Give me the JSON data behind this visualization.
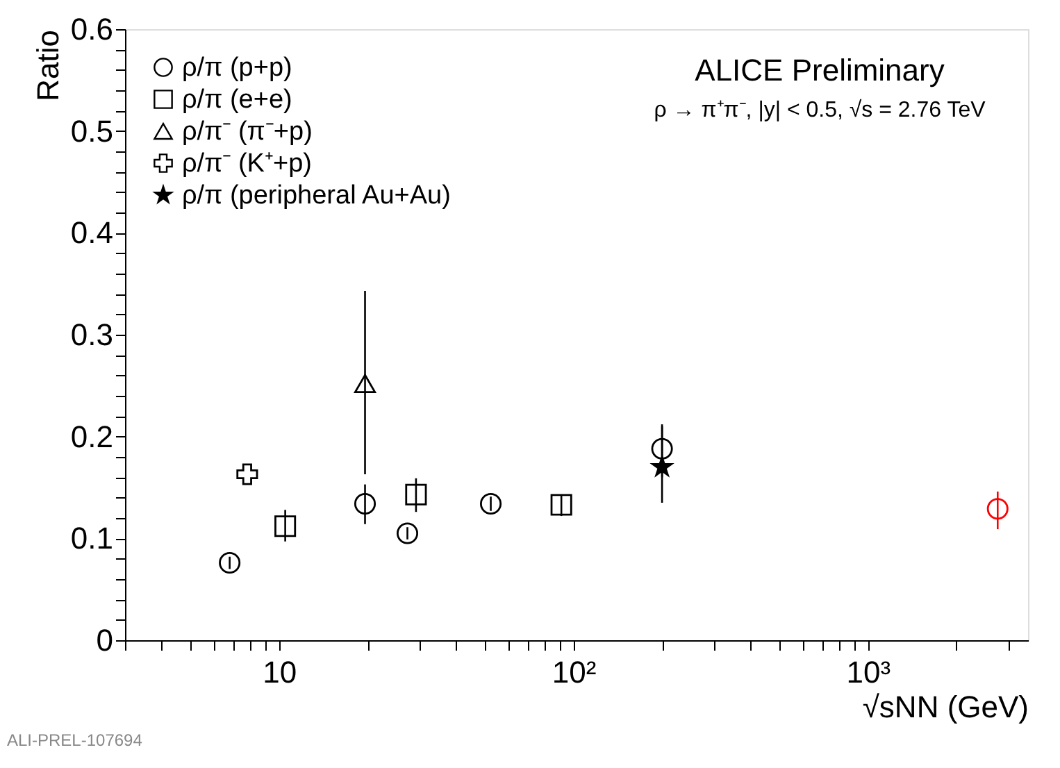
{
  "chart_data": {
    "type": "scatter",
    "xlabel": "√sNN (GeV)",
    "ylabel": "Ratio",
    "log": "x",
    "grid": false,
    "legend": "top left",
    "annotations": [
      "ALICE Preliminary",
      "ρ → π⁺π⁻, |y| < 0.5, √s = 2.76 TeV",
      "ALI-PREL-107694"
    ],
    "xlim": [
      3,
      3500
    ],
    "ylim": [
      0,
      0.6
    ],
    "xticks": [
      {
        "value": 3,
        "label": null
      },
      {
        "value": 4,
        "label": null
      },
      {
        "value": 5,
        "label": null
      },
      {
        "value": 6,
        "label": null
      },
      {
        "value": 7,
        "label": null
      },
      {
        "value": 8,
        "label": null
      },
      {
        "value": 9,
        "label": null
      },
      10,
      {
        "value": 20,
        "label": null
      },
      {
        "value": 30,
        "label": null
      },
      {
        "value": 40,
        "label": null
      },
      {
        "value": 50,
        "label": null
      },
      {
        "value": 60,
        "label": null
      },
      {
        "value": 70,
        "label": null
      },
      {
        "value": 80,
        "label": null
      },
      {
        "value": 90,
        "label": null
      },
      {
        "value": 100,
        "label": "10²"
      },
      {
        "value": 200,
        "label": null
      },
      {
        "value": 300,
        "label": null
      },
      {
        "value": 400,
        "label": null
      },
      {
        "value": 500,
        "label": null
      },
      {
        "value": 600,
        "label": null
      },
      {
        "value": 700,
        "label": null
      },
      {
        "value": 800,
        "label": null
      },
      {
        "value": 900,
        "label": null
      },
      {
        "value": 1000,
        "label": "10³"
      },
      {
        "value": 2000,
        "label": null
      },
      {
        "value": 3000,
        "label": null
      }
    ],
    "yticks": [
      0,
      {
        "value": 0.02,
        "label": null
      },
      {
        "value": 0.04,
        "label": null
      },
      {
        "value": 0.06,
        "label": null
      },
      {
        "value": 0.08,
        "label": null
      },
      0.1,
      {
        "value": 0.12,
        "label": null
      },
      {
        "value": 0.14,
        "label": null
      },
      {
        "value": 0.16,
        "label": null
      },
      {
        "value": 0.18,
        "label": null
      },
      0.2,
      {
        "value": 0.22,
        "label": null
      },
      {
        "value": 0.24,
        "label": null
      },
      {
        "value": 0.26,
        "label": null
      },
      {
        "value": 0.28,
        "label": null
      },
      0.3,
      {
        "value": 0.32,
        "label": null
      },
      {
        "value": 0.34,
        "label": null
      },
      {
        "value": 0.36,
        "label": null
      },
      {
        "value": 0.38,
        "label": null
      },
      0.4,
      {
        "value": 0.42,
        "label": null
      },
      {
        "value": 0.44,
        "label": null
      },
      {
        "value": 0.46,
        "label": null
      },
      {
        "value": 0.48,
        "label": null
      },
      0.5,
      {
        "value": 0.52,
        "label": null
      },
      {
        "value": 0.54,
        "label": null
      },
      {
        "value": 0.56,
        "label": null
      },
      {
        "value": 0.58,
        "label": null
      },
      0.6
    ],
    "series": [
      {
        "name": "ρ/π (p+p)",
        "color": "#000000",
        "marker": "circle",
        "x": [
          6.8,
          19.6,
          27.3,
          52.4,
          200
        ],
        "values": [
          0.076,
          0.134,
          0.105,
          0.134,
          0.188
        ],
        "errors": [
          [
            0.07,
            0.082
          ],
          [
            0.114,
            0.153
          ],
          [
            0.099,
            0.111
          ],
          [
            0.127,
            0.141
          ],
          [
            0.16,
            0.21
          ]
        ]
      },
      {
        "name": "ρ/π (e+e)",
        "color": "#000000",
        "marker": "square",
        "x": [
          10.5,
          29.2,
          91
        ],
        "values": [
          0.112,
          0.143,
          0.133
        ],
        "errors": [
          [
            0.097,
            0.128
          ],
          [
            0.126,
            0.159
          ],
          [
            0.122,
            0.143
          ]
        ]
      },
      {
        "name": "ρ/π⁻ (π⁻+p)",
        "color": "#000000",
        "marker": "triangle",
        "x": [
          19.6
        ],
        "values": [
          0.252
        ],
        "errors": [
          [
            0.163,
            0.343
          ]
        ]
      },
      {
        "name": "ρ/π⁻ (K⁺+p)",
        "color": "#000000",
        "marker": "cross",
        "x": [
          7.8
        ],
        "values": [
          0.163
        ]
      },
      {
        "name": "ρ/π (peripheral Au+Au)",
        "color": "#000000",
        "marker": "star",
        "x": [
          200
        ],
        "values": [
          0.17
        ],
        "errors": [
          [
            0.135,
            0.212
          ]
        ]
      },
      {
        "color": "#ff0000",
        "marker": "circle",
        "x": [
          2760
        ],
        "values": [
          0.129
        ],
        "errors": [
          [
            0.109,
            0.146
          ]
        ]
      }
    ]
  }
}
